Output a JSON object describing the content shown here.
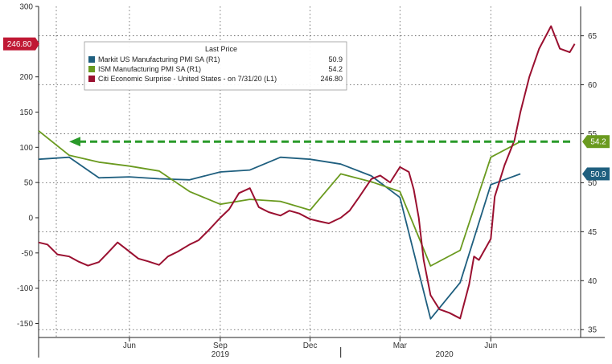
{
  "chart_data": {
    "type": "line",
    "legend": {
      "title": "Last Price",
      "placement": "top-left",
      "entries": [
        {
          "label": "Markit US Manufacturing PMI SA  (R1)",
          "value": "50.9",
          "color": "#1f5f7f"
        },
        {
          "label": "ISM Manufacturing PMI SA  (R1)",
          "value": "54.2",
          "color": "#6a9a1f"
        },
        {
          "label": "Citi Economic Surprise - United States -  on 7/31/20  (L1)",
          "value": "246.80",
          "color": "#9a1030"
        }
      ]
    },
    "x_axis": {
      "month_ticks": [
        "Jun",
        "Sep",
        "Dec",
        "Mar",
        "Jun"
      ],
      "month_tick_dates": [
        "2019-06-01",
        "2019-09-01",
        "2019-12-01",
        "2020-03-01",
        "2020-06-01"
      ],
      "year_labels": [
        "2019",
        "2020"
      ],
      "year_label_dates": [
        "2019-09-01",
        "2020-04-15"
      ],
      "year_divider_date": "2020-01-01",
      "range": [
        "2019-03-01",
        "2020-08-31"
      ]
    },
    "y_left": {
      "ticks": [
        300,
        250,
        200,
        150,
        100,
        50,
        0,
        -50,
        -100,
        -150
      ],
      "range": [
        -170,
        300
      ]
    },
    "y_right": {
      "ticks": [
        65,
        60,
        55,
        50,
        45,
        40,
        35
      ],
      "range": [
        34.2,
        68
      ]
    },
    "grid": "dashed",
    "badges": [
      {
        "axis": "left",
        "value": 246.8,
        "label": "246.80",
        "color": "#c01834"
      },
      {
        "axis": "right",
        "value": 54.2,
        "label": "54.2",
        "color": "#6a9a1f"
      },
      {
        "axis": "right",
        "value": 50.9,
        "label": "50.9",
        "color": "#1f5f7f"
      }
    ],
    "reference_line": {
      "axis": "right",
      "value": 54.2,
      "color": "#2a9a2a",
      "style": "dashed-arrow"
    },
    "series": [
      {
        "name": "Markit US Manufacturing PMI SA  (R1)",
        "axis": "right",
        "color": "#1f5f7f",
        "points": [
          [
            "2019-03-01",
            52.4
          ],
          [
            "2019-04-01",
            52.6
          ],
          [
            "2019-05-01",
            50.5
          ],
          [
            "2019-06-01",
            50.6
          ],
          [
            "2019-07-01",
            50.4
          ],
          [
            "2019-08-01",
            50.3
          ],
          [
            "2019-09-01",
            51.1
          ],
          [
            "2019-10-01",
            51.3
          ],
          [
            "2019-11-01",
            52.6
          ],
          [
            "2019-12-01",
            52.4
          ],
          [
            "2020-01-01",
            51.9
          ],
          [
            "2020-02-01",
            50.7
          ],
          [
            "2020-03-01",
            48.5
          ],
          [
            "2020-04-01",
            36.1
          ],
          [
            "2020-05-01",
            39.8
          ],
          [
            "2020-06-01",
            49.8
          ],
          [
            "2020-07-01",
            50.9
          ]
        ]
      },
      {
        "name": "ISM Manufacturing PMI SA  (R1)",
        "axis": "right",
        "color": "#6a9a1f",
        "points": [
          [
            "2019-03-01",
            55.3
          ],
          [
            "2019-04-01",
            52.8
          ],
          [
            "2019-05-01",
            52.1
          ],
          [
            "2019-06-01",
            51.7
          ],
          [
            "2019-07-01",
            51.2
          ],
          [
            "2019-08-01",
            49.1
          ],
          [
            "2019-09-01",
            47.8
          ],
          [
            "2019-10-01",
            48.3
          ],
          [
            "2019-11-01",
            48.1
          ],
          [
            "2019-12-01",
            47.2
          ],
          [
            "2020-01-01",
            50.9
          ],
          [
            "2020-02-01",
            50.1
          ],
          [
            "2020-03-01",
            49.1
          ],
          [
            "2020-04-01",
            41.5
          ],
          [
            "2020-05-01",
            43.1
          ],
          [
            "2020-06-01",
            52.6
          ],
          [
            "2020-07-01",
            54.2
          ]
        ]
      },
      {
        "name": "Citi Economic Surprise - United States -  on 7/31/20  (L1)",
        "axis": "left",
        "color": "#9a1030",
        "points": [
          [
            "2019-03-01",
            -35
          ],
          [
            "2019-03-10",
            -38
          ],
          [
            "2019-03-20",
            -52
          ],
          [
            "2019-04-01",
            -55
          ],
          [
            "2019-04-10",
            -62
          ],
          [
            "2019-04-20",
            -68
          ],
          [
            "2019-05-01",
            -63
          ],
          [
            "2019-05-10",
            -50
          ],
          [
            "2019-05-20",
            -35
          ],
          [
            "2019-06-01",
            -48
          ],
          [
            "2019-06-10",
            -58
          ],
          [
            "2019-06-20",
            -62
          ],
          [
            "2019-07-01",
            -67
          ],
          [
            "2019-07-10",
            -55
          ],
          [
            "2019-07-20",
            -48
          ],
          [
            "2019-08-01",
            -38
          ],
          [
            "2019-08-10",
            -32
          ],
          [
            "2019-08-20",
            -18
          ],
          [
            "2019-09-01",
            0
          ],
          [
            "2019-09-10",
            12
          ],
          [
            "2019-09-20",
            35
          ],
          [
            "2019-10-01",
            42
          ],
          [
            "2019-10-10",
            15
          ],
          [
            "2019-10-20",
            8
          ],
          [
            "2019-11-01",
            3
          ],
          [
            "2019-11-10",
            10
          ],
          [
            "2019-11-20",
            6
          ],
          [
            "2019-12-01",
            -2
          ],
          [
            "2019-12-10",
            -5
          ],
          [
            "2019-12-20",
            -8
          ],
          [
            "2020-01-01",
            0
          ],
          [
            "2020-01-10",
            10
          ],
          [
            "2020-01-20",
            30
          ],
          [
            "2020-02-01",
            55
          ],
          [
            "2020-02-10",
            60
          ],
          [
            "2020-02-20",
            50
          ],
          [
            "2020-03-01",
            72
          ],
          [
            "2020-03-10",
            65
          ],
          [
            "2020-03-15",
            40
          ],
          [
            "2020-03-20",
            0
          ],
          [
            "2020-03-25",
            -60
          ],
          [
            "2020-04-01",
            -110
          ],
          [
            "2020-04-10",
            -130
          ],
          [
            "2020-04-20",
            -135
          ],
          [
            "2020-05-01",
            -143
          ],
          [
            "2020-05-10",
            -95
          ],
          [
            "2020-05-15",
            -55
          ],
          [
            "2020-05-20",
            -60
          ],
          [
            "2020-06-01",
            -30
          ],
          [
            "2020-06-05",
            30
          ],
          [
            "2020-06-15",
            75
          ],
          [
            "2020-06-25",
            110
          ],
          [
            "2020-07-01",
            150
          ],
          [
            "2020-07-10",
            200
          ],
          [
            "2020-07-20",
            240
          ],
          [
            "2020-08-01",
            272
          ],
          [
            "2020-08-10",
            240
          ],
          [
            "2020-08-20",
            235
          ],
          [
            "2020-08-25",
            246.8
          ]
        ]
      }
    ]
  }
}
